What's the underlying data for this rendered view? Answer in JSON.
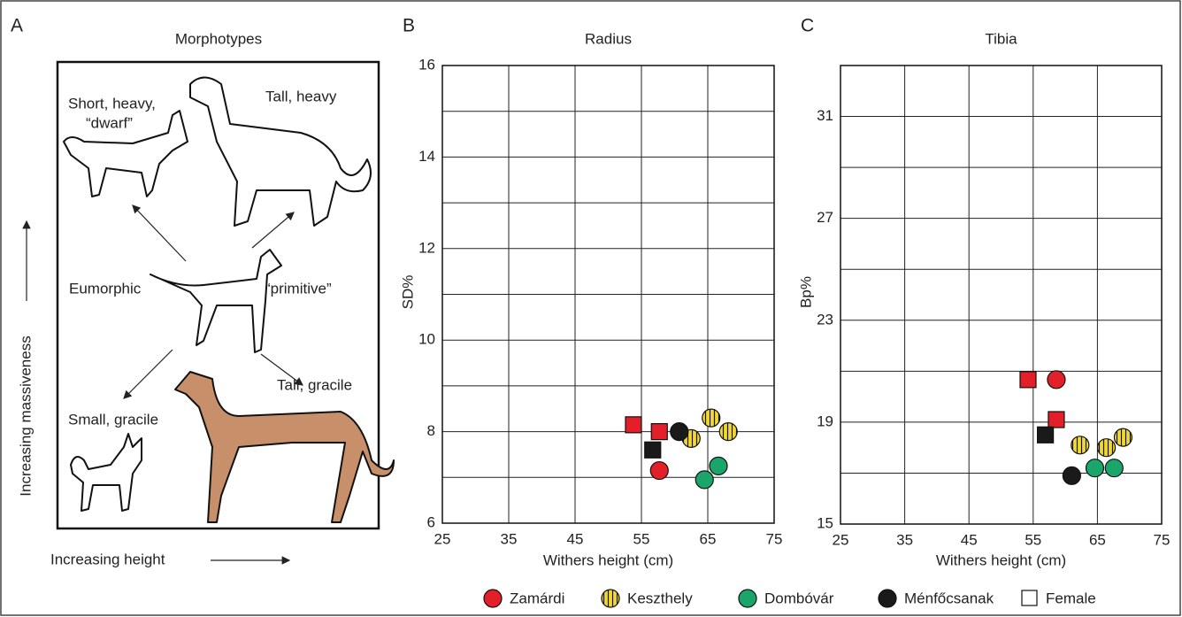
{
  "panel_a": {
    "label": "A",
    "title": "Morphotypes",
    "short_heavy": [
      "Short, heavy,",
      "“dwarf”"
    ],
    "tall_heavy": "Tall, heavy",
    "eumorphic": "Eumorphic",
    "primitive": "“primitive”",
    "tall_gracile": "Tall, gracile",
    "small_gracile": "Small, gracile",
    "y_label": "Increasing massiveness",
    "x_label": "Increasing height"
  },
  "female_label": "Female",
  "chart_data": [
    {
      "type": "scatter",
      "label": "B",
      "title": "Radius",
      "x_label": "Withers height (cm)",
      "y_label": "SD%",
      "xlim": [
        25,
        75
      ],
      "xticks": [
        25,
        35,
        45,
        55,
        65,
        75
      ],
      "ylim": [
        6,
        16
      ],
      "yticks": [
        6,
        8,
        10,
        12,
        14,
        16
      ],
      "yminor": [
        7,
        9,
        11,
        13,
        15
      ],
      "grid": true,
      "series": [
        {
          "name": "Zamárdi",
          "color": "#e3202a",
          "x": [
            53.8,
            57.7,
            57.7
          ],
          "values": [
            8.15,
            8.0,
            7.15
          ],
          "female": [
            true,
            true,
            false
          ]
        },
        {
          "name": "Keszthely",
          "color": "#f2d931",
          "hatch": true,
          "x": [
            65.5,
            62.5,
            68.1
          ],
          "values": [
            8.3,
            7.85,
            8.0
          ],
          "female": [
            false,
            false,
            false
          ]
        },
        {
          "name": "Dombóvár",
          "color": "#1aa66a",
          "x": [
            64.5,
            66.6
          ],
          "values": [
            6.95,
            7.25
          ],
          "female": [
            false,
            false
          ]
        },
        {
          "name": "Ménfőcsanak",
          "color": "#1a1a1a",
          "x": [
            56.7,
            60.7
          ],
          "values": [
            7.6,
            8.0
          ],
          "female": [
            true,
            false
          ]
        }
      ]
    },
    {
      "type": "scatter",
      "label": "C",
      "title": "Tibia",
      "x_label": "Withers height (cm)",
      "y_label": "Bp%",
      "xlim": [
        25,
        75
      ],
      "xticks": [
        25,
        35,
        45,
        55,
        65,
        75
      ],
      "ylim": [
        15,
        33
      ],
      "yticks": [
        15,
        19,
        23,
        27,
        31
      ],
      "yminor": [
        17,
        21,
        25,
        29,
        33
      ],
      "grid": true,
      "series": [
        {
          "name": "Zamárdi",
          "color": "#e3202a",
          "x": [
            54.2,
            58.6,
            58.6
          ],
          "values": [
            20.67,
            20.67,
            19.1
          ],
          "female": [
            true,
            false,
            true
          ]
        },
        {
          "name": "Keszthely",
          "color": "#f2d931",
          "hatch": true,
          "x": [
            62.3,
            66.4,
            69.0
          ],
          "values": [
            18.1,
            18.0,
            18.4
          ],
          "female": [
            false,
            false,
            false
          ]
        },
        {
          "name": "Dombóvár",
          "color": "#1aa66a",
          "x": [
            64.6,
            67.6
          ],
          "values": [
            17.2,
            17.2
          ],
          "female": [
            false,
            false
          ]
        },
        {
          "name": "Ménfőcsanak",
          "color": "#1a1a1a",
          "x": [
            56.9,
            61.0
          ],
          "values": [
            18.5,
            16.9
          ],
          "female": [
            true,
            false
          ]
        }
      ]
    }
  ]
}
